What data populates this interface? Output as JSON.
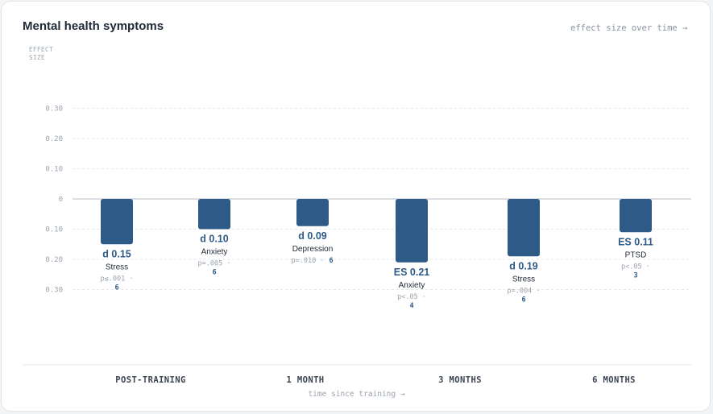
{
  "chart_data": {
    "type": "bar",
    "title": "Mental health symptoms",
    "subtitle": "effect size over time →",
    "ylabel": "EFFECT SIZE",
    "xlabel": "time since training →",
    "ylim": [
      -0.3,
      0.3
    ],
    "y_ticks": [
      0.3,
      0.2,
      0.1,
      0,
      -0.1,
      -0.2,
      -0.3
    ],
    "y_tick_labels": [
      "0.30",
      "0.20",
      "0.10",
      "0",
      "0.10",
      "0.20",
      "0.30"
    ],
    "grid": true,
    "categories": [
      "POST-TRAINING",
      "1 MONTH",
      "3 MONTHS",
      "6 MONTHS"
    ],
    "bars": [
      {
        "category": "POST-TRAINING",
        "value": -0.15,
        "stat_label": "d 0.15",
        "name": "Stress",
        "p_text": "p≤.001 ·",
        "n_text": "6"
      },
      {
        "category": "POST-TRAINING",
        "value": -0.1,
        "stat_label": "d 0.10",
        "name": "Anxiety",
        "p_text": "p=.005 ·",
        "n_text": "6"
      },
      {
        "category": "1 MONTH",
        "value": -0.09,
        "stat_label": "d 0.09",
        "name": "Depression",
        "p_text": "p=.010 ·",
        "n_text": "6"
      },
      {
        "category": "3 MONTHS",
        "value": -0.21,
        "stat_label": "ES 0.21",
        "name": "Anxiety",
        "p_text": "p<.05 ·",
        "n_text": "4"
      },
      {
        "category": "3 MONTHS",
        "value": -0.19,
        "stat_label": "d 0.19",
        "name": "Stress",
        "p_text": "p=.004 ·",
        "n_text": "6"
      },
      {
        "category": "6 MONTHS",
        "value": -0.11,
        "stat_label": "ES 0.11",
        "name": "PTSD",
        "p_text": "p<.05 ·",
        "n_text": "3"
      }
    ],
    "colors": {
      "bar": "#2d5a87",
      "grid": "#e5e7eb",
      "zero_line": "#b8bec6"
    }
  }
}
